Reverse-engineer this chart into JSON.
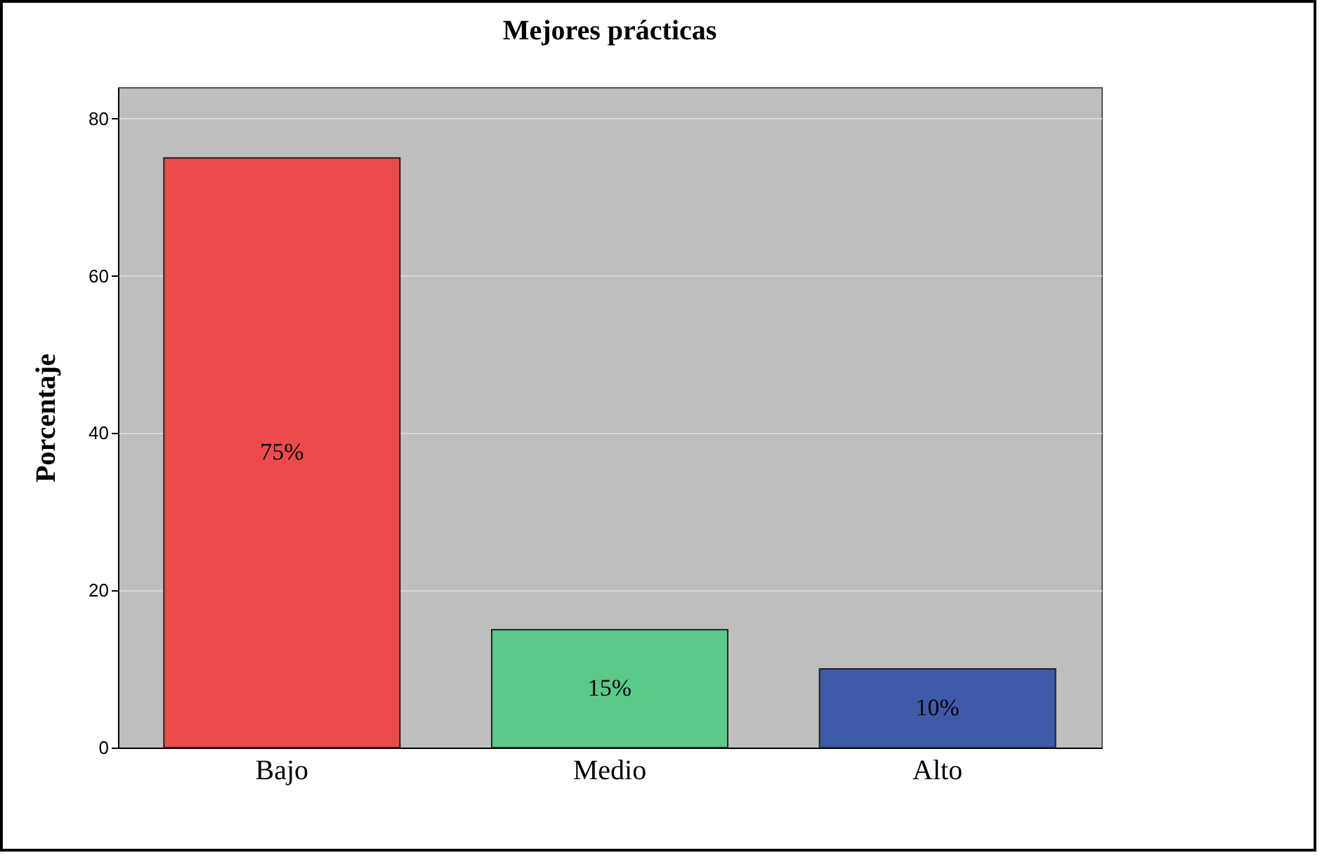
{
  "chart_data": {
    "type": "bar",
    "title": "Mejores prácticas",
    "ylabel": "Porcentaje",
    "categories": [
      "Bajo",
      "Medio",
      "Alto"
    ],
    "values": [
      75,
      15,
      10
    ],
    "colors": [
      "#ed4b4b",
      "#5bc98a",
      "#3f5aa9"
    ],
    "value_labels": [
      "75%",
      "15%",
      "10%"
    ],
    "ylim": [
      0,
      84
    ],
    "yticks": [
      0,
      20,
      40,
      60,
      80
    ],
    "grid": "y"
  }
}
